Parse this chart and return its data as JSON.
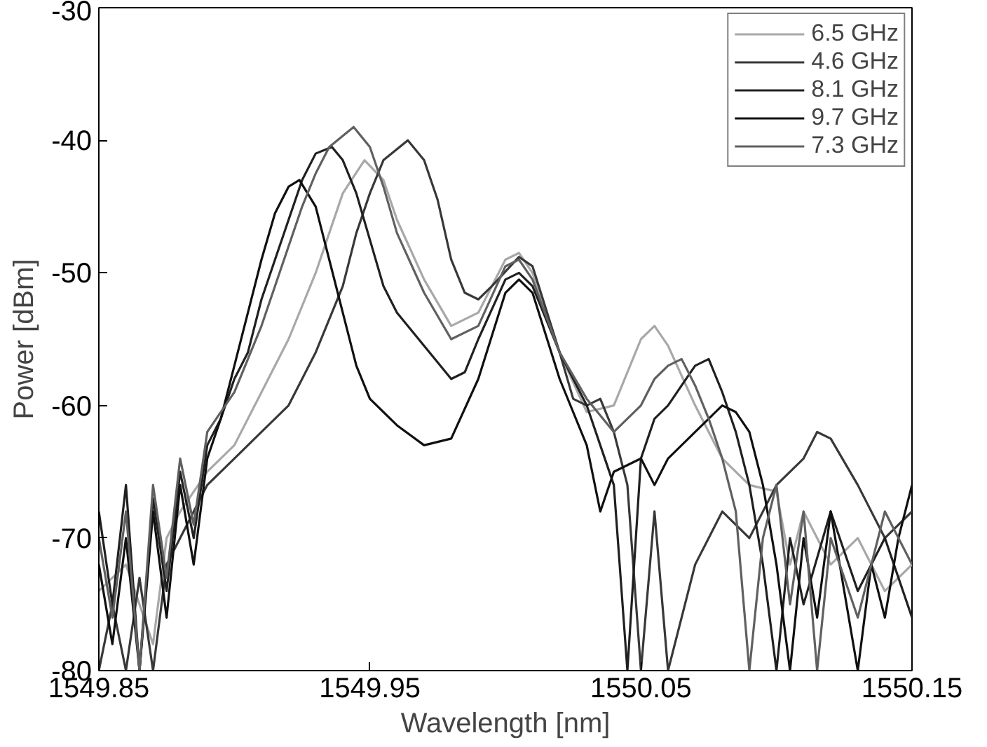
{
  "chart_data": {
    "type": "line",
    "xlabel": "Wavelength [nm]",
    "ylabel": "Power [dBm]",
    "xlim": [
      1549.85,
      1550.15
    ],
    "ylim": [
      -80,
      -30
    ],
    "xticks": [
      1549.85,
      1549.95,
      1550.05,
      1550.15
    ],
    "yticks": [
      -80,
      -70,
      -60,
      -50,
      -40,
      -30
    ],
    "grid": false,
    "legend": "top right",
    "line_style": "solid",
    "marker": "none",
    "series": [
      {
        "name": "6.5 GHz",
        "color": "#a8a8a8",
        "x": [
          1549.85,
          1549.86,
          1549.87,
          1549.875,
          1549.88,
          1549.885,
          1549.89,
          1549.9,
          1549.91,
          1549.92,
          1549.93,
          1549.935,
          1549.94,
          1549.948,
          1549.955,
          1549.96,
          1549.97,
          1549.98,
          1549.99,
          1550.0,
          1550.005,
          1550.01,
          1550.02,
          1550.03,
          1550.04,
          1550.05,
          1550.055,
          1550.06,
          1550.07,
          1550.08,
          1550.09,
          1550.1,
          1550.105,
          1550.11,
          1550.12,
          1550.13,
          1550.14,
          1550.15
        ],
        "values": [
          -74,
          -72,
          -78,
          -70,
          -68,
          -66.5,
          -65,
          -63,
          -59,
          -55,
          -50,
          -47,
          -44,
          -41.5,
          -43,
          -46,
          -50.5,
          -54,
          -53,
          -49,
          -48.5,
          -50,
          -56,
          -60.5,
          -60,
          -55,
          -54,
          -55.5,
          -60,
          -64,
          -66,
          -66.5,
          -72,
          -68,
          -72,
          -70,
          -74,
          -72
        ]
      },
      {
        "name": "4.6 GHz",
        "color": "#383838",
        "x": [
          1549.85,
          1549.855,
          1549.86,
          1549.865,
          1549.87,
          1549.875,
          1549.88,
          1549.885,
          1549.89,
          1549.9,
          1549.91,
          1549.92,
          1549.93,
          1549.94,
          1549.945,
          1549.95,
          1549.955,
          1549.964,
          1549.97,
          1549.975,
          1549.98,
          1549.985,
          1549.99,
          1549.995,
          1550.005,
          1550.01,
          1550.02,
          1550.025,
          1550.03,
          1550.035,
          1550.04,
          1550.045,
          1550.05,
          1550.055,
          1550.06,
          1550.07,
          1550.08,
          1550.09,
          1550.1,
          1550.11,
          1550.115,
          1550.12,
          1550.13,
          1550.14,
          1550.15
        ],
        "values": [
          -80,
          -75,
          -80,
          -73,
          -80,
          -72,
          -70,
          -68,
          -66,
          -64,
          -62,
          -60,
          -56,
          -51,
          -47,
          -44,
          -41.5,
          -40,
          -41.5,
          -44.5,
          -49,
          -51.5,
          -52,
          -51,
          -48.8,
          -49.5,
          -56,
          -59.5,
          -60,
          -59.5,
          -62,
          -66,
          -80,
          -68,
          -80,
          -72,
          -68,
          -70,
          -66,
          -64,
          -62,
          -62.5,
          -66,
          -70,
          -68
        ]
      },
      {
        "name": "8.1 GHz",
        "color": "#202020",
        "x": [
          1549.85,
          1549.855,
          1549.86,
          1549.865,
          1549.87,
          1549.875,
          1549.88,
          1549.885,
          1549.89,
          1549.895,
          1549.9,
          1549.905,
          1549.91,
          1549.915,
          1549.92,
          1549.925,
          1549.93,
          1549.936,
          1549.94,
          1549.945,
          1549.95,
          1549.955,
          1549.96,
          1549.97,
          1549.98,
          1549.985,
          1549.99,
          1550.0,
          1550.005,
          1550.01,
          1550.02,
          1550.03,
          1550.035,
          1550.04,
          1550.045,
          1550.05,
          1550.055,
          1550.06,
          1550.065,
          1550.07,
          1550.075,
          1550.08,
          1550.085,
          1550.09,
          1550.095,
          1550.1,
          1550.105,
          1550.11,
          1550.12,
          1550.13,
          1550.14,
          1550.15
        ],
        "values": [
          -68,
          -75,
          -66,
          -80,
          -67,
          -74,
          -65,
          -70,
          -63,
          -61,
          -58,
          -56,
          -52,
          -49,
          -46,
          -43,
          -41,
          -40.5,
          -41.5,
          -44,
          -47.5,
          -51,
          -53,
          -55.5,
          -58,
          -57.5,
          -55,
          -50.5,
          -50,
          -51,
          -56,
          -60,
          -63,
          -66,
          -80,
          -64,
          -61,
          -60,
          -58.5,
          -57,
          -56.5,
          -59,
          -62,
          -66,
          -72,
          -80,
          -70,
          -75,
          -68,
          -74,
          -70,
          -76
        ]
      },
      {
        "name": "9.7 GHz",
        "color": "#101010",
        "x": [
          1549.85,
          1549.855,
          1549.86,
          1549.865,
          1549.87,
          1549.875,
          1549.88,
          1549.885,
          1549.89,
          1549.895,
          1549.9,
          1549.905,
          1549.91,
          1549.915,
          1549.92,
          1549.924,
          1549.93,
          1549.935,
          1549.94,
          1549.945,
          1549.95,
          1549.96,
          1549.97,
          1549.98,
          1549.99,
          1550.0,
          1550.005,
          1550.01,
          1550.02,
          1550.03,
          1550.035,
          1550.04,
          1550.05,
          1550.055,
          1550.06,
          1550.07,
          1550.08,
          1550.085,
          1550.09,
          1550.095,
          1550.1,
          1550.105,
          1550.11,
          1550.115,
          1550.12,
          1550.125,
          1550.13,
          1550.135,
          1550.14,
          1550.145,
          1550.15
        ],
        "values": [
          -72,
          -78,
          -70,
          -80,
          -68,
          -76,
          -66,
          -72,
          -64,
          -61,
          -57,
          -53,
          -49,
          -45.5,
          -43.5,
          -43,
          -45,
          -49,
          -53,
          -57,
          -59.5,
          -61.5,
          -63,
          -62.5,
          -58,
          -51.5,
          -50.5,
          -51.5,
          -58,
          -63,
          -68,
          -65,
          -64,
          -66,
          -64,
          -62,
          -60,
          -60.5,
          -62,
          -66,
          -72,
          -80,
          -70,
          -76,
          -68,
          -74,
          -80,
          -72,
          -76,
          -70,
          -66
        ]
      },
      {
        "name": "7.3 GHz",
        "color": "#606060",
        "x": [
          1549.85,
          1549.855,
          1549.86,
          1549.865,
          1549.87,
          1549.875,
          1549.88,
          1549.885,
          1549.89,
          1549.9,
          1549.91,
          1549.915,
          1549.92,
          1549.925,
          1549.93,
          1549.935,
          1549.944,
          1549.95,
          1549.955,
          1549.96,
          1549.97,
          1549.98,
          1549.99,
          1550.0,
          1550.005,
          1550.01,
          1550.02,
          1550.03,
          1550.04,
          1550.05,
          1550.055,
          1550.06,
          1550.065,
          1550.07,
          1550.075,
          1550.08,
          1550.085,
          1550.09,
          1550.095,
          1550.1,
          1550.105,
          1550.11,
          1550.115,
          1550.12,
          1550.13,
          1550.14,
          1550.15
        ],
        "values": [
          -70,
          -76,
          -68,
          -80,
          -66,
          -73,
          -64,
          -69,
          -62,
          -59,
          -54,
          -51,
          -48,
          -45,
          -42.5,
          -40.5,
          -39,
          -40.5,
          -43.5,
          -47,
          -51.5,
          -55,
          -54,
          -49.5,
          -49,
          -50.5,
          -56,
          -59.5,
          -62,
          -60,
          -58,
          -57,
          -56.5,
          -58.5,
          -61,
          -64,
          -68,
          -80,
          -70,
          -66,
          -75,
          -68,
          -80,
          -70,
          -76,
          -68,
          -72
        ]
      }
    ]
  }
}
